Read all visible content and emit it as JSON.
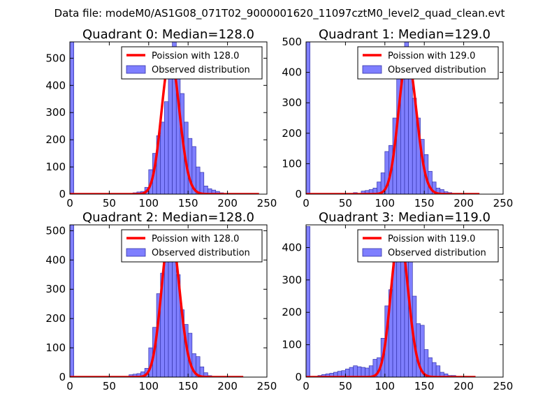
{
  "figure_title": "Data file: modeM0/AS1G08_071T02_9000001620_11097cztM0_level2_quad_clean.evt",
  "colors": {
    "bar_fill": "#7f7fff",
    "bar_edge": "#3333aa",
    "poisson_line": "#ff0000",
    "axes": "#000000",
    "background": "#ffffff",
    "legend_edge": "#000000"
  },
  "chart_data": [
    {
      "type": "bar",
      "title": "Quadrant 0: Median=128.0",
      "xlim": [
        0,
        250
      ],
      "ylim": [
        0,
        560
      ],
      "xticks": [
        0,
        50,
        100,
        150,
        200,
        250
      ],
      "yticks": [
        0,
        100,
        200,
        300,
        400,
        500
      ],
      "bin_width": 5,
      "legend": [
        "Poission with 128.0",
        "Observed distribution"
      ],
      "median": 128,
      "hist": {
        "bin_starts": [
          0,
          80,
          85,
          90,
          95,
          100,
          105,
          110,
          115,
          120,
          125,
          130,
          135,
          140,
          145,
          150,
          155,
          160,
          165,
          170,
          175,
          180,
          185,
          190
        ],
        "values": [
          560,
          5,
          8,
          10,
          25,
          90,
          150,
          215,
          265,
          340,
          480,
          560,
          515,
          370,
          265,
          205,
          175,
          100,
          80,
          30,
          20,
          15,
          10,
          5
        ]
      },
      "poisson": {
        "mean": 128,
        "peak": 505,
        "x_end": 240
      }
    },
    {
      "type": "bar",
      "title": "Quadrant 1: Median=129.0",
      "xlim": [
        0,
        250
      ],
      "ylim": [
        0,
        500
      ],
      "xticks": [
        0,
        50,
        100,
        150,
        200,
        250
      ],
      "yticks": [
        0,
        100,
        200,
        300,
        400,
        500
      ],
      "bin_width": 5,
      "legend": [
        "Poission with 129.0",
        "Observed distribution"
      ],
      "median": 129,
      "hist": {
        "bin_starts": [
          0,
          60,
          70,
          75,
          80,
          85,
          90,
          95,
          100,
          105,
          110,
          115,
          120,
          125,
          130,
          135,
          140,
          145,
          150,
          155,
          160,
          165,
          170,
          175,
          180
        ],
        "values": [
          500,
          5,
          10,
          12,
          15,
          20,
          40,
          70,
          140,
          160,
          250,
          380,
          470,
          500,
          450,
          315,
          250,
          180,
          130,
          75,
          40,
          20,
          15,
          8,
          5
        ]
      },
      "poisson": {
        "mean": 129,
        "peak": 448,
        "x_end": 220
      }
    },
    {
      "type": "bar",
      "title": "Quadrant 2: Median=128.0",
      "xlim": [
        0,
        250
      ],
      "ylim": [
        0,
        520
      ],
      "xticks": [
        0,
        50,
        100,
        150,
        200,
        250
      ],
      "yticks": [
        0,
        100,
        200,
        300,
        400,
        500
      ],
      "bin_width": 5,
      "legend": [
        "Poission with 128.0",
        "Observed distribution"
      ],
      "median": 128,
      "hist": {
        "bin_starts": [
          0,
          75,
          80,
          85,
          90,
          95,
          100,
          105,
          110,
          115,
          120,
          125,
          130,
          135,
          140,
          145,
          150,
          155,
          160,
          165,
          170,
          175
        ],
        "values": [
          520,
          8,
          10,
          12,
          18,
          30,
          100,
          170,
          285,
          355,
          420,
          500,
          490,
          350,
          230,
          180,
          150,
          80,
          70,
          35,
          15,
          5
        ]
      },
      "poisson": {
        "mean": 128,
        "peak": 500,
        "x_end": 220
      }
    },
    {
      "type": "bar",
      "title": "Quadrant 3: Median=119.0",
      "xlim": [
        0,
        250
      ],
      "ylim": [
        0,
        470
      ],
      "xticks": [
        0,
        50,
        100,
        150,
        200,
        250
      ],
      "yticks": [
        0,
        100,
        200,
        300,
        400
      ],
      "bin_width": 5,
      "legend": [
        "Poission with 119.0",
        "Observed distribution"
      ],
      "median": 119,
      "hist": {
        "bin_starts": [
          0,
          15,
          20,
          25,
          30,
          35,
          40,
          45,
          50,
          55,
          60,
          65,
          70,
          75,
          80,
          85,
          90,
          95,
          100,
          105,
          110,
          115,
          120,
          125,
          130,
          135,
          140,
          145,
          150,
          155,
          160,
          165,
          170,
          175,
          180,
          185
        ],
        "values": [
          465,
          5,
          8,
          10,
          12,
          15,
          18,
          20,
          25,
          30,
          35,
          32,
          30,
          28,
          35,
          55,
          60,
          120,
          220,
          270,
          430,
          440,
          420,
          390,
          375,
          250,
          165,
          160,
          85,
          60,
          45,
          35,
          15,
          10,
          5,
          5
        ]
      },
      "poisson": {
        "mean": 119,
        "peak": 440,
        "x_end": 215
      }
    }
  ]
}
